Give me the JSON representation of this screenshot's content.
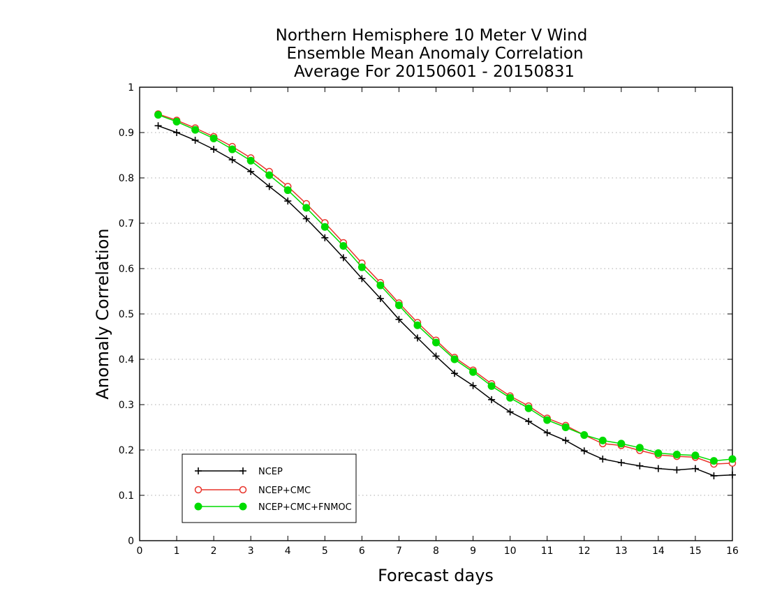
{
  "chart_data": {
    "type": "line",
    "title": [
      "Northern Hemisphere 10 Meter V Wind",
      "Ensemble Mean Anomaly Correlation",
      "Average For 20150601 - 20150831"
    ],
    "xlabel": "Forecast days",
    "ylabel": "Anomaly Correlation",
    "xlim": [
      0,
      16
    ],
    "ylim": [
      0,
      1
    ],
    "xticks": [
      "0",
      "1",
      "2",
      "3",
      "4",
      "5",
      "6",
      "7",
      "8",
      "9",
      "10",
      "11",
      "12",
      "13",
      "14",
      "15",
      "16"
    ],
    "yticks": [
      "0",
      "0.1",
      "0.2",
      "0.3",
      "0.4",
      "0.5",
      "0.6",
      "0.7",
      "0.8",
      "0.9",
      "1"
    ],
    "grid": "horizontal-dotted",
    "legend_position": "bottom-left",
    "x": [
      0.5,
      1,
      1.5,
      2,
      2.5,
      3,
      3.5,
      4,
      4.5,
      5,
      5.5,
      6,
      6.5,
      7,
      7.5,
      8,
      8.5,
      9,
      9.5,
      10,
      10.5,
      11,
      11.5,
      12,
      12.5,
      13,
      13.5,
      14,
      14.5,
      15,
      15.5,
      16
    ],
    "series": [
      {
        "name": "NCEP",
        "color": "#000000",
        "marker": "plus",
        "values": [
          0.915,
          0.9,
          0.883,
          0.863,
          0.84,
          0.814,
          0.781,
          0.749,
          0.71,
          0.668,
          0.624,
          0.578,
          0.534,
          0.488,
          0.447,
          0.407,
          0.369,
          0.342,
          0.311,
          0.284,
          0.263,
          0.238,
          0.221,
          0.198,
          0.18,
          0.172,
          0.165,
          0.159,
          0.156,
          0.159,
          0.143,
          0.145
        ]
      },
      {
        "name": "NCEP+CMC",
        "color": "#e8332a",
        "marker": "open-circle",
        "values": [
          0.941,
          0.927,
          0.91,
          0.891,
          0.869,
          0.844,
          0.814,
          0.781,
          0.743,
          0.701,
          0.657,
          0.612,
          0.569,
          0.524,
          0.481,
          0.442,
          0.404,
          0.376,
          0.346,
          0.319,
          0.297,
          0.27,
          0.254,
          0.233,
          0.214,
          0.21,
          0.199,
          0.189,
          0.186,
          0.184,
          0.169,
          0.171
        ]
      },
      {
        "name": "NCEP+CMC+FNMOC",
        "color": "#00dc00",
        "marker": "filled-circle",
        "values": [
          0.939,
          0.924,
          0.906,
          0.887,
          0.863,
          0.838,
          0.806,
          0.773,
          0.734,
          0.692,
          0.65,
          0.603,
          0.563,
          0.519,
          0.475,
          0.437,
          0.4,
          0.372,
          0.341,
          0.315,
          0.292,
          0.266,
          0.25,
          0.233,
          0.221,
          0.214,
          0.205,
          0.193,
          0.19,
          0.188,
          0.176,
          0.18
        ]
      }
    ]
  }
}
